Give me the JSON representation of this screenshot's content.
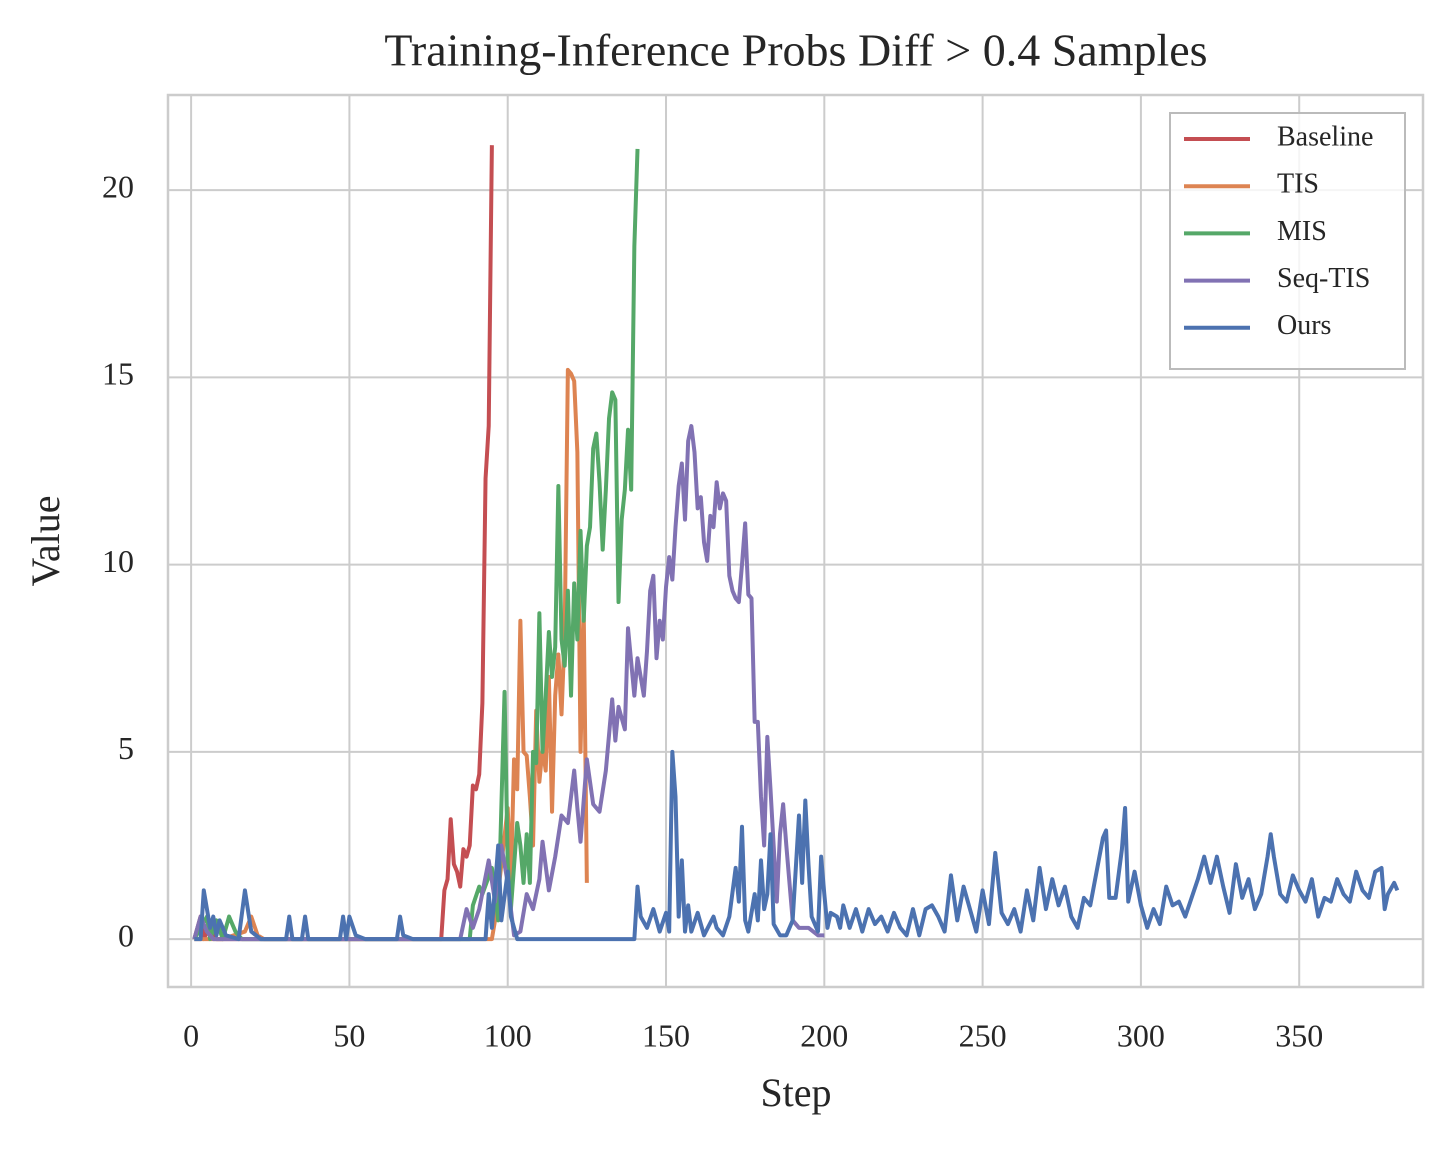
{
  "chart_data": {
    "type": "line",
    "title": "Training-Inference Probs Diff > 0.4 Samples",
    "x_label": "Step",
    "y_label": "Value",
    "xlim": [
      -7.3,
      389.1
    ],
    "ylim": [
      -1.28,
      22.54
    ],
    "xticks": [
      0,
      50,
      100,
      150,
      200,
      250,
      300,
      350
    ],
    "yticks": [
      0,
      5,
      10,
      15,
      20
    ],
    "grid": true,
    "legend": "upper right",
    "series": [
      {
        "name": "Baseline",
        "color": "#c44e52",
        "x": [
          1,
          3,
          4,
          6,
          8,
          10,
          20,
          40,
          60,
          79,
          80,
          81,
          82,
          83,
          84,
          85,
          86,
          87,
          88,
          89,
          90,
          91,
          92,
          93,
          94,
          95
        ],
        "values": [
          0,
          0.6,
          0,
          0.4,
          0,
          0,
          0,
          0,
          0,
          0,
          1.3,
          1.6,
          3.2,
          2.0,
          1.8,
          1.4,
          2.4,
          2.2,
          2.5,
          4.1,
          4.0,
          4.4,
          6.3,
          12.3,
          13.7,
          21.2
        ]
      },
      {
        "name": "TIS",
        "color": "#dd8452",
        "x": [
          1,
          10,
          17,
          19,
          21,
          23,
          40,
          60,
          80,
          95,
          96,
          98,
          100,
          101,
          102,
          103,
          104,
          105,
          106,
          107,
          108,
          109,
          110,
          111,
          112,
          113,
          114,
          115,
          116,
          117,
          118,
          119,
          120,
          121,
          122,
          123,
          124,
          125
        ],
        "values": [
          0,
          0,
          0.2,
          0.6,
          0.1,
          0,
          0,
          0,
          0,
          0,
          0.5,
          2.0,
          3.5,
          1.5,
          4.8,
          4.0,
          8.5,
          5.0,
          4.9,
          3.8,
          2.5,
          6.1,
          4.2,
          5.1,
          4.5,
          7.0,
          3.4,
          6.5,
          7.6,
          6.0,
          8.2,
          15.2,
          15.1,
          14.9,
          13.0,
          5.0,
          8.8,
          1.5
        ]
      },
      {
        "name": "MIS",
        "color": "#55a868",
        "x": [
          1,
          5,
          6,
          8,
          10,
          12,
          14,
          16,
          40,
          60,
          88,
          89,
          91,
          92,
          95,
          97,
          99,
          100,
          101,
          103,
          104,
          105,
          106,
          107,
          108,
          109,
          110,
          111,
          112,
          113,
          114,
          115,
          116,
          117,
          118,
          119,
          120,
          121,
          122,
          123,
          124,
          125,
          126,
          127,
          128,
          129,
          130,
          131,
          132,
          133,
          134,
          135,
          136,
          137,
          138,
          139,
          140,
          141
        ],
        "values": [
          0,
          0.6,
          0,
          0.5,
          0,
          0.6,
          0.2,
          0,
          0,
          0,
          0,
          0.9,
          1.4,
          1.2,
          1.9,
          0.5,
          6.6,
          2.0,
          0.8,
          3.1,
          2.5,
          1.5,
          2.8,
          1.5,
          5.0,
          4.7,
          8.7,
          5.0,
          6.5,
          8.2,
          7.0,
          7.8,
          12.1,
          8.0,
          7.3,
          9.3,
          6.5,
          9.5,
          8.0,
          10.9,
          8.5,
          10.5,
          11.0,
          13.1,
          13.5,
          12.2,
          10.4,
          12.0,
          13.9,
          14.6,
          14.4,
          9.0,
          11.2,
          12.0,
          13.6,
          12.0,
          18.5,
          21.1
        ]
      },
      {
        "name": "Seq-TIS",
        "color": "#8172b3",
        "x": [
          1,
          3,
          5,
          7,
          20,
          40,
          60,
          85,
          87,
          89,
          91,
          94,
          96,
          98,
          100,
          102,
          104,
          106,
          108,
          110,
          111,
          113,
          115,
          117,
          119,
          121,
          122,
          123,
          125,
          127,
          129,
          131,
          133,
          134,
          135,
          137,
          138,
          140,
          141,
          143,
          144,
          145,
          146,
          147,
          148,
          149,
          150,
          151,
          152,
          153,
          154,
          155,
          156,
          157,
          158,
          159,
          160,
          161,
          162,
          163,
          164,
          165,
          166,
          167,
          168,
          169,
          170,
          171,
          172,
          173,
          174,
          175,
          176,
          177,
          178,
          179,
          180,
          181,
          182,
          183,
          184,
          185,
          186,
          187,
          188,
          189,
          190,
          192,
          195,
          198,
          200
        ],
        "values": [
          0,
          0.6,
          0.2,
          0,
          0,
          0,
          0,
          0,
          0.8,
          0.3,
          0.8,
          2.1,
          1.0,
          2.5,
          1.5,
          0.1,
          0.2,
          1.2,
          0.8,
          1.6,
          2.6,
          1.3,
          2.2,
          3.3,
          3.1,
          4.5,
          3.5,
          2.6,
          4.8,
          3.6,
          3.4,
          4.5,
          6.4,
          5.3,
          6.2,
          5.6,
          8.3,
          6.5,
          7.5,
          6.5,
          7.7,
          9.3,
          9.7,
          7.5,
          8.5,
          8.0,
          9.4,
          10.2,
          9.6,
          11.0,
          12.1,
          12.7,
          11.2,
          13.3,
          13.7,
          13.0,
          11.5,
          11.8,
          10.6,
          10.1,
          11.3,
          11.0,
          12.2,
          11.5,
          11.9,
          11.7,
          9.7,
          9.3,
          9.1,
          9.0,
          10.0,
          11.1,
          9.2,
          9.1,
          5.8,
          5.8,
          3.8,
          2.5,
          5.4,
          4.0,
          2.5,
          1.0,
          2.8,
          3.6,
          2.5,
          1.5,
          0.5,
          0.3,
          0.3,
          0.1,
          0.1
        ]
      },
      {
        "name": "Ours",
        "color": "#4c72b0",
        "x": [
          1,
          3,
          4,
          6,
          7,
          8,
          9,
          11,
          15,
          17,
          19,
          22,
          30,
          31,
          32,
          35,
          36,
          37,
          40,
          47,
          48,
          49,
          50,
          52,
          55,
          65,
          66,
          67,
          70,
          93,
          94,
          95,
          97,
          98,
          100,
          101,
          102,
          103,
          140,
          141,
          142,
          144,
          146,
          148,
          150,
          151,
          152,
          153,
          154,
          155,
          156,
          157,
          158,
          160,
          162,
          165,
          166,
          168,
          170,
          172,
          173,
          174,
          175,
          176,
          178,
          179,
          180,
          181,
          182,
          183,
          184,
          186,
          188,
          190,
          192,
          193,
          194,
          195,
          196,
          198,
          199,
          200,
          201,
          202,
          204,
          205,
          206,
          208,
          210,
          212,
          214,
          216,
          218,
          220,
          222,
          224,
          226,
          228,
          230,
          232,
          234,
          236,
          238,
          240,
          242,
          244,
          246,
          248,
          250,
          252,
          254,
          256,
          258,
          260,
          262,
          264,
          266,
          268,
          270,
          272,
          274,
          276,
          278,
          280,
          282,
          284,
          286,
          288,
          289,
          290,
          292,
          294,
          295,
          296,
          298,
          300,
          302,
          304,
          306,
          308,
          310,
          312,
          314,
          316,
          318,
          320,
          322,
          324,
          326,
          328,
          330,
          332,
          334,
          336,
          338,
          340,
          341,
          342,
          344,
          346,
          348,
          350,
          352,
          354,
          356,
          358,
          360,
          362,
          364,
          366,
          368,
          370,
          372,
          374,
          376,
          377,
          378,
          380,
          381
        ],
        "values": [
          0,
          0,
          1.3,
          0.3,
          0.6,
          0.1,
          0.5,
          0.1,
          0,
          1.3,
          0.2,
          0,
          0,
          0.6,
          0,
          0,
          0.6,
          0,
          0,
          0,
          0.6,
          0,
          0.6,
          0.1,
          0,
          0,
          0.6,
          0.1,
          0,
          0,
          1.2,
          0.3,
          2.5,
          0.5,
          1.8,
          0.6,
          0.3,
          0,
          0,
          1.4,
          0.6,
          0.3,
          0.8,
          0.2,
          0.7,
          0.2,
          5.0,
          3.8,
          0.6,
          2.1,
          0.2,
          0.9,
          0.2,
          0.7,
          0.1,
          0.6,
          0.3,
          0.1,
          0.6,
          1.9,
          1.0,
          3.0,
          0.5,
          0.2,
          1.2,
          0.5,
          2.1,
          0.8,
          1.2,
          2.8,
          0.4,
          0.1,
          0.1,
          0.5,
          3.3,
          1.5,
          3.7,
          2.0,
          0.6,
          0.2,
          2.2,
          1.2,
          0.3,
          0.7,
          0.6,
          0.3,
          0.9,
          0.3,
          0.8,
          0.2,
          0.8,
          0.4,
          0.6,
          0.2,
          0.7,
          0.3,
          0.1,
          0.8,
          0.1,
          0.8,
          0.9,
          0.6,
          0.2,
          1.7,
          0.5,
          1.4,
          0.8,
          0.2,
          1.3,
          0.4,
          2.3,
          0.7,
          0.4,
          0.8,
          0.2,
          1.3,
          0.5,
          1.9,
          0.8,
          1.6,
          0.9,
          1.4,
          0.6,
          0.3,
          1.1,
          0.9,
          1.8,
          2.7,
          2.9,
          1.1,
          1.1,
          2.4,
          3.5,
          1.0,
          1.8,
          0.9,
          0.3,
          0.8,
          0.4,
          1.4,
          0.9,
          1.0,
          0.6,
          1.1,
          1.6,
          2.2,
          1.5,
          2.2,
          1.4,
          0.7,
          2.0,
          1.1,
          1.6,
          0.8,
          1.2,
          2.2,
          2.8,
          2.2,
          1.2,
          1.0,
          1.7,
          1.3,
          1.0,
          1.6,
          0.6,
          1.1,
          1.0,
          1.6,
          1.2,
          1.0,
          1.8,
          1.3,
          1.1,
          1.8,
          1.9,
          0.8,
          1.2,
          1.5,
          1.3
        ]
      }
    ]
  }
}
